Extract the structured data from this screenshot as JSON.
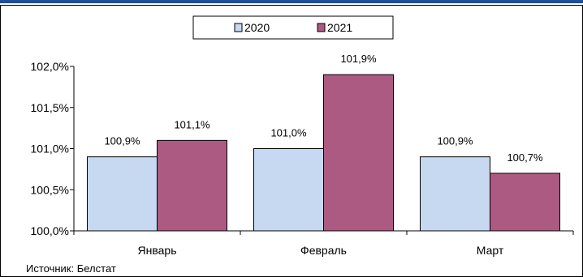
{
  "chart_data": {
    "type": "bar",
    "title": "",
    "xlabel": "",
    "ylabel": "",
    "categories": [
      "Январь",
      "Февраль",
      "Март"
    ],
    "series": [
      {
        "name": "2020",
        "values": [
          100.9,
          101.0,
          100.9
        ],
        "labels": [
          "100,9%",
          "101,0%",
          "100,9%"
        ],
        "color": "#c6d9f1"
      },
      {
        "name": "2021",
        "values": [
          101.1,
          101.9,
          100.7
        ],
        "labels": [
          "101,1%",
          "101,9%",
          "100,7%"
        ],
        "color": "#ad5a82"
      }
    ],
    "ylim": [
      100.0,
      102.0
    ],
    "yticks": [
      100.0,
      100.5,
      101.0,
      101.5,
      102.0
    ],
    "ytick_labels": [
      "100,0%",
      "100,5%",
      "101,0%",
      "101,5%",
      "102,0%"
    ],
    "grid": false,
    "legend_position": "top-center"
  },
  "source": "Источник: Белстат"
}
